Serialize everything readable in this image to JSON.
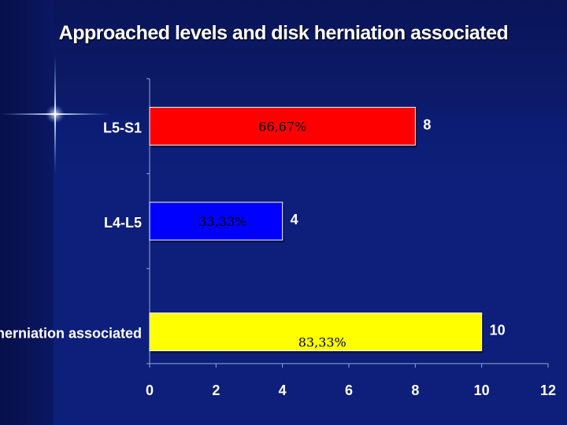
{
  "chart_data": {
    "type": "bar",
    "orientation": "horizontal",
    "title": "Approached levels and disk herniation associated",
    "categories": [
      "L5-S1",
      "L4-L5",
      "Disk herniation associated"
    ],
    "values": [
      8,
      4,
      10
    ],
    "value_labels": [
      "8",
      "4",
      "10"
    ],
    "percent_labels": [
      "66,67%",
      "33,33%",
      "83,33%"
    ],
    "colors": [
      "#ff0000",
      "#0000ff",
      "#ffff00"
    ],
    "xlim": [
      0,
      12
    ],
    "xticks": [
      "0",
      "2",
      "4",
      "6",
      "8",
      "10",
      "12"
    ],
    "xlabel": "",
    "ylabel": "",
    "grid": false,
    "legend": "none"
  }
}
